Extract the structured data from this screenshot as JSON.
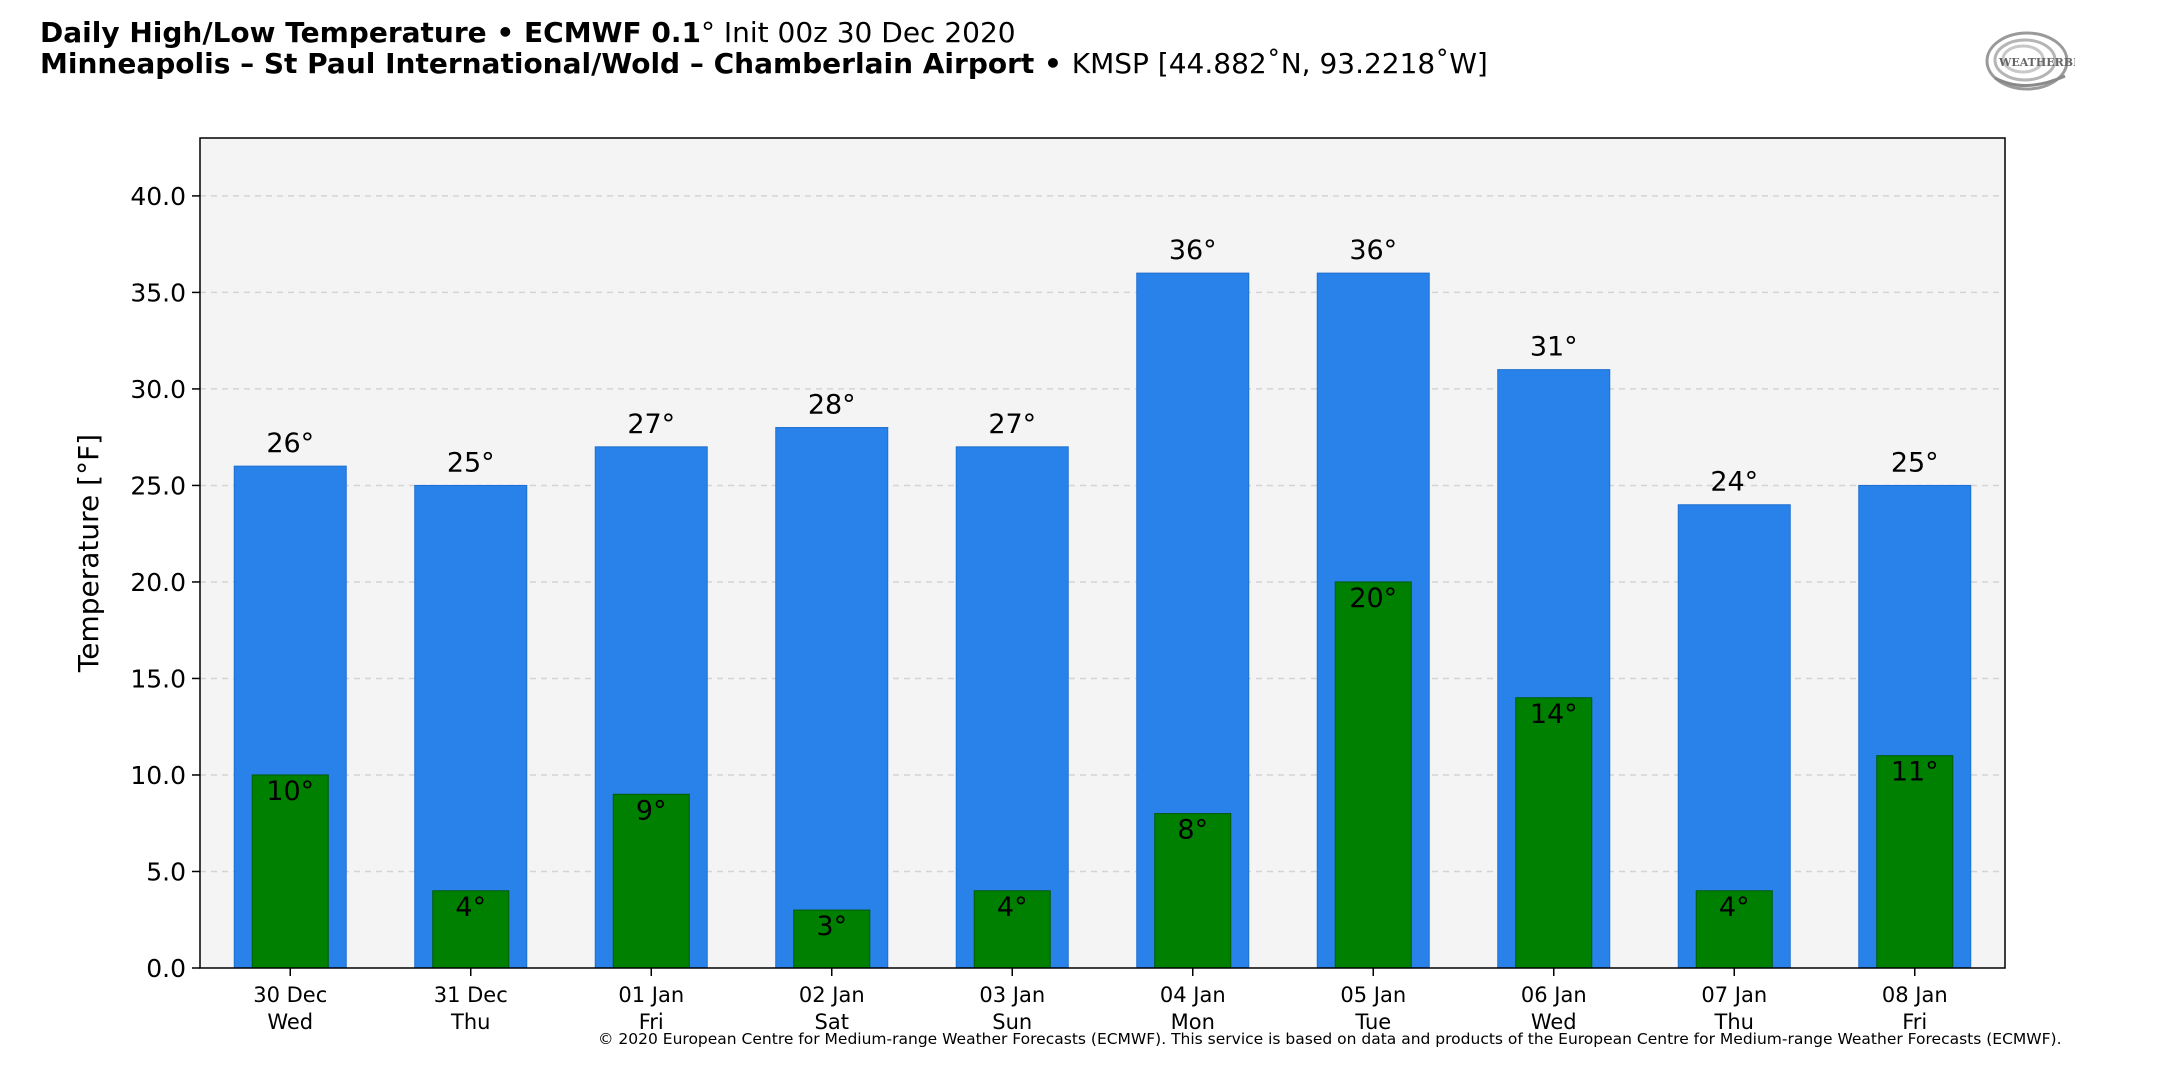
{
  "header": {
    "title_bold": "Daily High/Low Temperature • ECMWF 0.1",
    "title_degree": "°",
    "title_rest": " Init 00z 30 Dec 2020",
    "subtitle_bold": "Minneapolis – St Paul International/Wold – Chamberlain Airport",
    "subtitle_bullet": " • ",
    "subtitle_rest": "KMSP [44.882˚N, 93.2218˚W]"
  },
  "logo": {
    "text": "WEATHERBELL",
    "icon": "weatherbell-logo"
  },
  "copyright": "© 2020 European Centre for Medium-range Weather Forecasts (ECMWF). This service is based on data and products of the European Centre for Medium-range Weather Forecasts (ECMWF).",
  "colors": {
    "high_bar": "#2882ea",
    "low_bar": "#008000",
    "plot_bg": "#f4f4f4",
    "grid": "#d4d4d4"
  },
  "chart_data": {
    "type": "bar",
    "ylabel": "Temperature [°F]",
    "ylim": [
      0,
      43
    ],
    "yticks": [
      "0.0",
      "5.0",
      "10.0",
      "15.0",
      "20.0",
      "25.0",
      "30.0",
      "35.0",
      "40.0"
    ],
    "ytick_values": [
      0,
      5,
      10,
      15,
      20,
      25,
      30,
      35,
      40
    ],
    "grid": true,
    "categories": [
      [
        "30 Dec",
        "Wed"
      ],
      [
        "31 Dec",
        "Thu"
      ],
      [
        "01 Jan",
        "Fri"
      ],
      [
        "02 Jan",
        "Sat"
      ],
      [
        "03 Jan",
        "Sun"
      ],
      [
        "04 Jan",
        "Mon"
      ],
      [
        "05 Jan",
        "Tue"
      ],
      [
        "06 Jan",
        "Wed"
      ],
      [
        "07 Jan",
        "Thu"
      ],
      [
        "08 Jan",
        "Fri"
      ]
    ],
    "series": [
      {
        "values": [
          26,
          25,
          27,
          28,
          27,
          36,
          36,
          31,
          24,
          25
        ],
        "labels": [
          "26°",
          "25°",
          "27°",
          "28°",
          "27°",
          "36°",
          "36°",
          "31°",
          "24°",
          "25°"
        ]
      },
      {
        "values": [
          10,
          4,
          9,
          3,
          4,
          8,
          20,
          14,
          4,
          11
        ],
        "labels": [
          "10°",
          "4°",
          "9°",
          "3°",
          "4°",
          "8°",
          "20°",
          "14°",
          "4°",
          "11°"
        ]
      }
    ]
  }
}
